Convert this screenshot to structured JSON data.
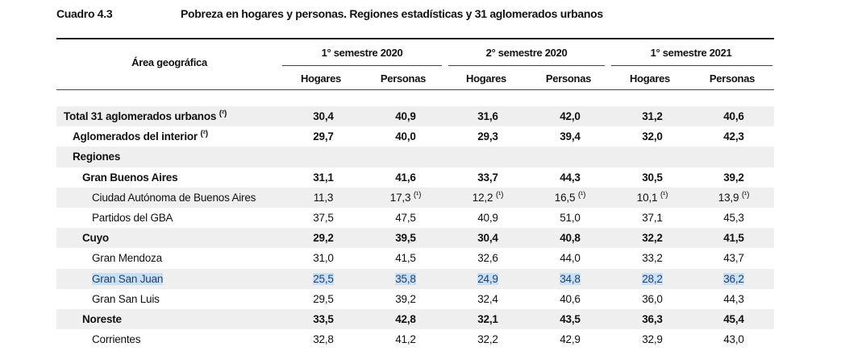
{
  "caption": {
    "number": "Cuadro 4.3",
    "title": "Pobreza en hogares y personas. Regiones estadísticas y 31 aglomerados urbanos"
  },
  "header": {
    "area_label": "Área geográfica",
    "semesters": [
      "1° semestre 2020",
      "2° semestre 2020",
      "1° semestre 2021"
    ],
    "sub_labels": [
      "Hogares",
      "Personas",
      "Hogares",
      "Personas",
      "Hogares",
      "Personas"
    ]
  },
  "rows": [
    {
      "label": "Total 31 aglomerados urbanos",
      "note": "(²)",
      "level": 0,
      "bold": true,
      "shade": true,
      "highlight": false,
      "values": [
        {
          "v": "30,4"
        },
        {
          "v": "40,9"
        },
        {
          "v": "31,6"
        },
        {
          "v": "42,0"
        },
        {
          "v": "31,2"
        },
        {
          "v": "40,6"
        }
      ]
    },
    {
      "label": "Aglomerados del interior",
      "note": "(²)",
      "level": 1,
      "bold": true,
      "shade": false,
      "highlight": false,
      "values": [
        {
          "v": "29,7"
        },
        {
          "v": "40,0"
        },
        {
          "v": "29,3"
        },
        {
          "v": "39,4"
        },
        {
          "v": "32,0"
        },
        {
          "v": "42,3"
        }
      ]
    },
    {
      "label": "Regiones",
      "note": "",
      "level": 1,
      "bold": true,
      "shade": true,
      "highlight": false,
      "values": [
        {
          "v": ""
        },
        {
          "v": ""
        },
        {
          "v": ""
        },
        {
          "v": ""
        },
        {
          "v": ""
        },
        {
          "v": ""
        }
      ]
    },
    {
      "label": "Gran Buenos Aires",
      "note": "",
      "level": 2,
      "bold": true,
      "shade": false,
      "highlight": false,
      "values": [
        {
          "v": "31,1"
        },
        {
          "v": "41,6"
        },
        {
          "v": "33,7"
        },
        {
          "v": "44,3"
        },
        {
          "v": "30,5"
        },
        {
          "v": "39,2"
        }
      ]
    },
    {
      "label": "Ciudad Autónoma de Buenos Aires",
      "note": "",
      "level": 3,
      "bold": false,
      "shade": true,
      "highlight": false,
      "values": [
        {
          "v": "11,3"
        },
        {
          "v": "17,3",
          "n": "(¹)"
        },
        {
          "v": "12,2",
          "n": "(¹)"
        },
        {
          "v": "16,5",
          "n": "(¹)"
        },
        {
          "v": "10,1",
          "n": "(¹)"
        },
        {
          "v": "13,9",
          "n": "(¹)"
        }
      ]
    },
    {
      "label": "Partidos del GBA",
      "note": "",
      "level": 3,
      "bold": false,
      "shade": false,
      "highlight": false,
      "values": [
        {
          "v": "37,5"
        },
        {
          "v": "47,5"
        },
        {
          "v": "40,9"
        },
        {
          "v": "51,0"
        },
        {
          "v": "37,1"
        },
        {
          "v": "45,3"
        }
      ]
    },
    {
      "label": "Cuyo",
      "note": "",
      "level": 2,
      "bold": true,
      "shade": true,
      "highlight": false,
      "values": [
        {
          "v": "29,2"
        },
        {
          "v": "39,5"
        },
        {
          "v": "30,4"
        },
        {
          "v": "40,8"
        },
        {
          "v": "32,2"
        },
        {
          "v": "41,5"
        }
      ]
    },
    {
      "label": "Gran Mendoza",
      "note": "",
      "level": 3,
      "bold": false,
      "shade": false,
      "highlight": false,
      "values": [
        {
          "v": "31,0"
        },
        {
          "v": "41,5"
        },
        {
          "v": "32,6"
        },
        {
          "v": "44,0"
        },
        {
          "v": "33,2"
        },
        {
          "v": "43,7"
        }
      ]
    },
    {
      "label": "Gran San Juan",
      "note": "",
      "level": 3,
      "bold": false,
      "shade": true,
      "highlight": true,
      "values": [
        {
          "v": "25,5"
        },
        {
          "v": "35,8"
        },
        {
          "v": "24,9"
        },
        {
          "v": "34,8"
        },
        {
          "v": "28,2"
        },
        {
          "v": "36,2"
        }
      ]
    },
    {
      "label": "Gran San Luis",
      "note": "",
      "level": 3,
      "bold": false,
      "shade": false,
      "highlight": false,
      "values": [
        {
          "v": "29,5"
        },
        {
          "v": "39,2"
        },
        {
          "v": "32,4"
        },
        {
          "v": "40,6"
        },
        {
          "v": "36,0"
        },
        {
          "v": "44,3"
        }
      ]
    },
    {
      "label": "Noreste",
      "note": "",
      "level": 2,
      "bold": true,
      "shade": true,
      "highlight": false,
      "values": [
        {
          "v": "33,5"
        },
        {
          "v": "42,8"
        },
        {
          "v": "32,1"
        },
        {
          "v": "43,5"
        },
        {
          "v": "36,3"
        },
        {
          "v": "45,4"
        }
      ]
    },
    {
      "label": "Corrientes",
      "note": "",
      "level": 3,
      "bold": false,
      "shade": false,
      "highlight": false,
      "values": [
        {
          "v": "32,8"
        },
        {
          "v": "41,2"
        },
        {
          "v": "32,2"
        },
        {
          "v": "42,9"
        },
        {
          "v": "32,9"
        },
        {
          "v": "43,0"
        }
      ]
    }
  ],
  "colors": {
    "shade": "#efefef",
    "highlight": "#c9dff3"
  }
}
